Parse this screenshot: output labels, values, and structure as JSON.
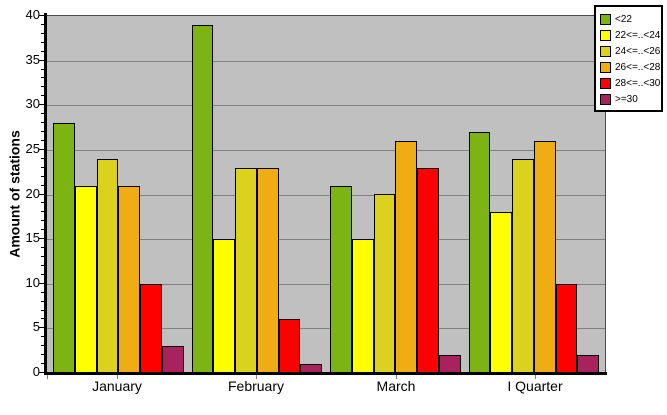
{
  "chart_data": {
    "type": "bar",
    "title": "",
    "xlabel": "",
    "ylabel": "Amount of stations",
    "ylim": [
      0,
      40
    ],
    "ytick_step": 5,
    "yminor_tick_step": 1,
    "yticks": [
      0,
      5,
      10,
      15,
      20,
      25,
      30,
      35,
      40
    ],
    "grid": true,
    "legend_position": "top-right",
    "plot_background": "#C0C0C0",
    "grid_color": "#808080",
    "bar_border_color": "#000000",
    "categories": [
      "January",
      "February",
      "March",
      "I Quarter"
    ],
    "series": [
      {
        "name": "<22",
        "color": "#7CB413",
        "values": [
          28,
          39,
          21,
          27
        ]
      },
      {
        "name": "22<=..<24",
        "color": "#FFFF00",
        "values": [
          21,
          15,
          15,
          18
        ]
      },
      {
        "name": "24<=..<26",
        "color": "#DCD11D",
        "values": [
          24,
          23,
          20,
          24
        ]
      },
      {
        "name": "26<=..<28",
        "color": "#F0AC13",
        "values": [
          21,
          23,
          26,
          26
        ]
      },
      {
        "name": "28<=..<30",
        "color": "#FF0000",
        "values": [
          10,
          6,
          23,
          10
        ]
      },
      {
        "name": ">=30",
        "color": "#A8225E",
        "values": [
          3,
          1,
          2,
          2
        ]
      }
    ]
  }
}
